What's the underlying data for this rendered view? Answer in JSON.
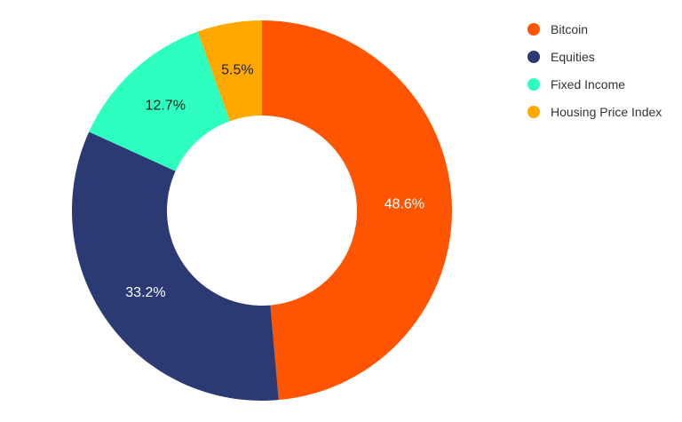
{
  "chart_data": {
    "type": "pie",
    "subtype": "donut",
    "categories": [
      "Bitcoin",
      "Equities",
      "Fixed Income",
      "Housing Price Index"
    ],
    "values": [
      48.6,
      33.2,
      12.7,
      5.5
    ],
    "labels": [
      "48.6%",
      "33.2%",
      "12.7%",
      "5.5%"
    ],
    "colors": [
      "#FF5500",
      "#2B3A72",
      "#2EFFC0",
      "#FFA800"
    ],
    "label_colors": [
      "#ffffff",
      "#ffffff",
      "#222222",
      "#222222"
    ],
    "legend_position": "top-right",
    "grid": false
  }
}
